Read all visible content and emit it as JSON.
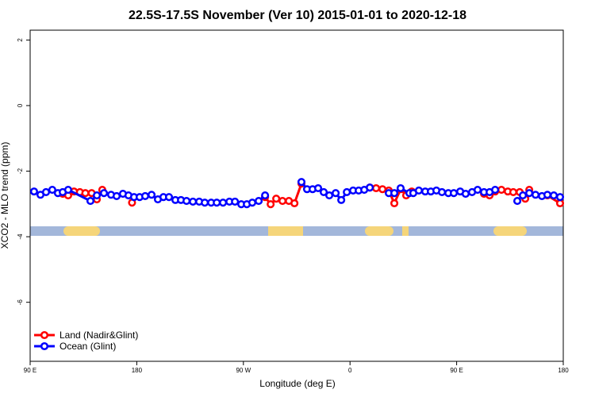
{
  "chart_data": {
    "type": "line",
    "title": "22.5S-17.5S November (Ver 10)   2015-01-01 to 2020-12-18",
    "xlabel": "Longitude (deg E)",
    "ylabel": "XCO2 - MLO trend (ppm)",
    "xlim": [
      90,
      540
    ],
    "xticks": [
      {
        "value": 90,
        "label": "90 E"
      },
      {
        "value": 180,
        "label": "180"
      },
      {
        "value": 270,
        "label": "90 W"
      },
      {
        "value": 360,
        "label": "0"
      },
      {
        "value": 450,
        "label": "90 E"
      },
      {
        "value": 540,
        "label": "180"
      }
    ],
    "ylim": [
      -7.8,
      2.3
    ],
    "yticks": [
      2,
      0,
      -2,
      -4,
      -6
    ],
    "legend": "bottomleft",
    "series": [
      {
        "name": "Land (Nadir&Glint)",
        "color": "#ff0000",
        "x": [
          117.5,
          122.1,
          127.0,
          132.0,
          136.6,
          141.9,
          146.3,
          150.9,
          null,
          176.0,
          null,
          288.3,
          293.0,
          297.7,
          303.0,
          308.4,
          313.1,
          319.0,
          null,
          376.7,
          382.0,
          387.4,
          392.7,
          397.4,
          402.7,
          407.4,
          412.1,
          null,
          473.1,
          477.8,
          482.5,
          487.8,
          493.2,
          497.8,
          503.2,
          507.9,
          511.3,
          null,
          526.6,
          537.3
        ],
        "values": [
          -2.69,
          -2.74,
          -2.62,
          -2.64,
          -2.67,
          -2.67,
          -2.86,
          -2.57,
          null,
          -2.96,
          null,
          -2.79,
          -3.01,
          -2.84,
          -2.91,
          -2.91,
          -2.98,
          -2.38,
          null,
          -2.5,
          -2.52,
          -2.55,
          -2.59,
          -2.98,
          -2.55,
          -2.74,
          -2.62,
          null,
          -2.69,
          -2.74,
          -2.62,
          -2.57,
          -2.62,
          -2.64,
          -2.64,
          -2.84,
          -2.57,
          null,
          -2.74,
          -2.98
        ]
      },
      {
        "name": "Ocean (Glint)",
        "color": "#0000ff",
        "x": [
          93.3,
          98.7,
          103.4,
          108.7,
          113.4,
          117.5,
          122.1,
          140.9,
          146.3,
          152.3,
          158.3,
          163.0,
          168.3,
          173.0,
          177.7,
          182.4,
          187.1,
          192.5,
          197.8,
          202.5,
          207.2,
          212.6,
          217.3,
          222.0,
          227.4,
          232.7,
          237.4,
          242.8,
          247.5,
          252.8,
          258.2,
          262.9,
          268.2,
          272.9,
          277.5,
          282.9,
          288.3,
          null,
          319.0,
          323.7,
          328.4,
          333.1,
          337.8,
          342.5,
          347.9,
          352.6,
          357.3,
          362.6,
          367.3,
          372.0,
          376.7,
          null,
          392.7,
          397.4,
          402.7,
          410.1,
          413.4,
          418.1,
          423.5,
          428.2,
          432.9,
          437.6,
          443.0,
          447.6,
          453.0,
          457.6,
          463.0,
          467.7,
          473.1,
          477.8,
          482.5,
          null,
          501.2,
          505.9,
          511.3,
          516.6,
          522.0,
          526.6,
          532.0,
          537.3
        ],
        "values": [
          -2.62,
          -2.72,
          -2.64,
          -2.57,
          -2.67,
          -2.64,
          -2.57,
          -2.91,
          -2.74,
          -2.67,
          -2.72,
          -2.76,
          -2.69,
          -2.74,
          -2.79,
          -2.79,
          -2.76,
          -2.72,
          -2.86,
          -2.79,
          -2.79,
          -2.88,
          -2.88,
          -2.91,
          -2.93,
          -2.93,
          -2.96,
          -2.96,
          -2.96,
          -2.96,
          -2.93,
          -2.93,
          -3.01,
          -3.01,
          -2.96,
          -2.91,
          -2.74,
          null,
          -2.33,
          -2.55,
          -2.55,
          -2.52,
          -2.64,
          -2.74,
          -2.67,
          -2.88,
          -2.64,
          -2.59,
          -2.59,
          -2.57,
          -2.5,
          null,
          -2.67,
          -2.67,
          -2.52,
          -2.67,
          -2.67,
          -2.59,
          -2.62,
          -2.62,
          -2.59,
          -2.64,
          -2.67,
          -2.67,
          -2.62,
          -2.69,
          -2.64,
          -2.57,
          -2.64,
          -2.64,
          -2.57,
          null,
          -2.91,
          -2.74,
          -2.67,
          -2.72,
          -2.76,
          -2.72,
          -2.74,
          -2.79
        ]
      }
    ]
  }
}
